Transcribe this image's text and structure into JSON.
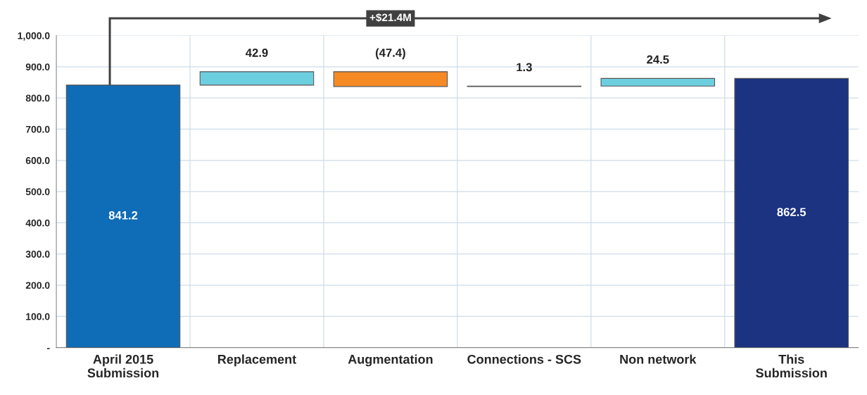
{
  "chart_data": {
    "type": "bar",
    "categories": [
      "April 2015\nSubmission",
      "Replacement",
      "Augmentation",
      "Connections - SCS",
      "Non network",
      "This\nSubmission"
    ],
    "values": [
      841.2,
      42.9,
      -47.4,
      1.3,
      24.5,
      862.5
    ],
    "base": [
      0,
      841.2,
      884.1,
      836.7,
      838.0,
      0
    ],
    "colors": [
      "#0f6cb6",
      "#6ccfe0",
      "#f58a25",
      "#6c9ba6",
      "#6ccfe0",
      "#1b3380"
    ],
    "value_labels": [
      "841.2",
      "42.9",
      "(47.4)",
      "1.3",
      "24.5",
      "862.5"
    ],
    "ylim": [
      0,
      1000
    ],
    "yticks": [
      {
        "value": 0,
        "label": "-"
      },
      {
        "value": 100,
        "label": "100.0"
      },
      {
        "value": 200,
        "label": "200.0"
      },
      {
        "value": 300,
        "label": "300.0"
      },
      {
        "value": 400,
        "label": "400.0"
      },
      {
        "value": 500,
        "label": "500.0"
      },
      {
        "value": 600,
        "label": "600.0"
      },
      {
        "value": 700,
        "label": "700.0"
      },
      {
        "value": 800,
        "label": "800.0"
      },
      {
        "value": 900,
        "label": "900.0"
      },
      {
        "value": 1000,
        "label": "1,000.0"
      }
    ],
    "grid": true,
    "annotations": [
      "+$21.4M"
    ]
  }
}
